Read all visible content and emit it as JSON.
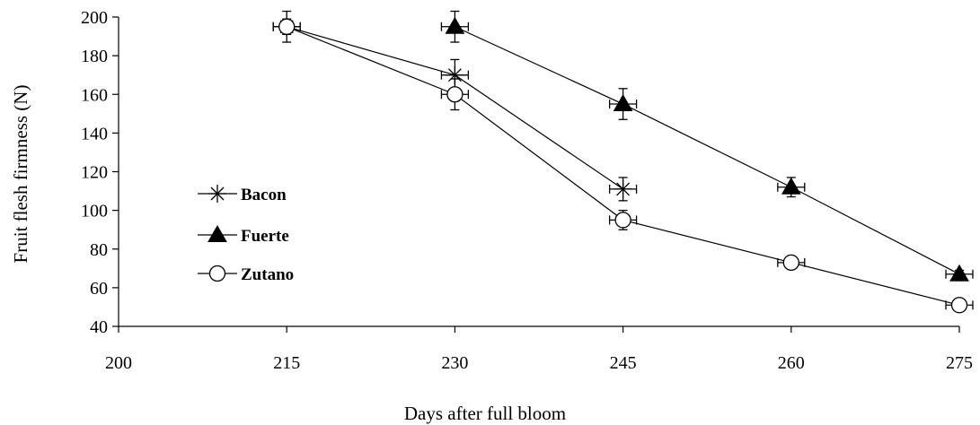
{
  "chart_data": {
    "type": "line",
    "xlabel": "Days after full bloom",
    "ylabel": "Fruit flesh firmness (N)",
    "xlim": [
      200,
      275
    ],
    "ylim": [
      40,
      200
    ],
    "xticks": [
      200,
      215,
      230,
      245,
      260,
      275
    ],
    "yticks": [
      40,
      60,
      80,
      100,
      120,
      140,
      160,
      180,
      200
    ],
    "grid": false,
    "legend_position": "left-center",
    "series": [
      {
        "name": "Bacon",
        "marker": "asterisk",
        "x": [
          215,
          230,
          245
        ],
        "y": [
          195,
          170,
          111
        ],
        "y_err": [
          4,
          8,
          6
        ],
        "x_err": [
          1.2,
          1.2,
          1.2
        ]
      },
      {
        "name": "Fuerte",
        "marker": "filled-triangle",
        "x": [
          230,
          245,
          260,
          275
        ],
        "y": [
          195,
          155,
          112,
          67
        ],
        "y_err": [
          8,
          8,
          5,
          2
        ],
        "x_err": [
          1.2,
          1.2,
          1.2,
          1.2
        ]
      },
      {
        "name": "Zutano",
        "marker": "open-circle",
        "x": [
          215,
          230,
          245,
          260,
          275
        ],
        "y": [
          195,
          160,
          95,
          73,
          51
        ],
        "y_err": [
          8,
          8,
          5,
          3,
          2
        ],
        "x_err": [
          1.2,
          1.2,
          1.2,
          1.2,
          1.2
        ]
      }
    ]
  }
}
